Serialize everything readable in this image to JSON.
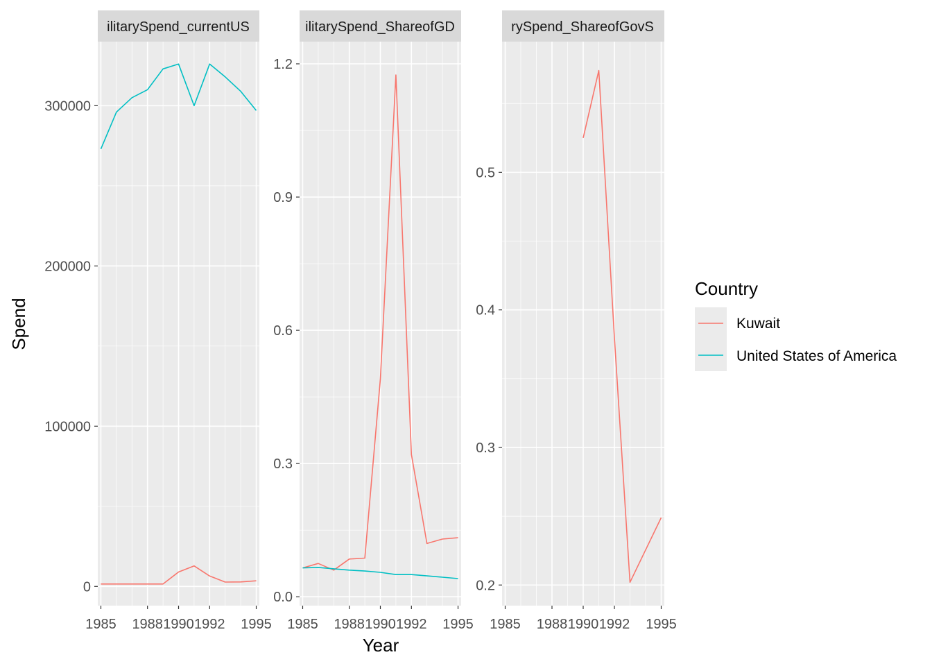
{
  "colors": {
    "Kuwait": "#F8766D",
    "United States of America": "#00BFC4",
    "panel_bg": "#EBEBEB",
    "strip_bg": "#D9D9D9",
    "grid": "#FFFFFF"
  },
  "chart_data": {
    "type": "line",
    "xlabel": "Year",
    "ylabel": "Spend",
    "legend": {
      "title": "Country",
      "position": "right",
      "entries": [
        "Kuwait",
        "United States of America"
      ]
    },
    "x_tick_labels": [
      "1985",
      "1988",
      "1990",
      "1992",
      "1995"
    ],
    "facets": [
      {
        "strip": "ilitarySpend_currentUS",
        "xlim": [
          1984.8,
          1995.2
        ],
        "ylim": [
          -12000,
          340000
        ],
        "y_ticks": [
          0,
          100000,
          200000,
          300000
        ],
        "y_tick_labels": [
          "0",
          "100000",
          "200000",
          "300000"
        ],
        "series": [
          {
            "name": "Kuwait",
            "x": [
              1985,
              1986,
              1987,
              1988,
              1989,
              1990,
              1991,
              1992,
              1993,
              1994,
              1995
            ],
            "values": [
              1500,
              1500,
              1500,
              1500,
              1500,
              9000,
              12800,
              6500,
              2700,
              2800,
              3500
            ]
          },
          {
            "name": "United States of America",
            "x": [
              1985,
              1986,
              1987,
              1988,
              1989,
              1990,
              1991,
              1992,
              1993,
              1994,
              1995
            ],
            "values": [
              273000,
              296000,
              305000,
              310000,
              323000,
              326000,
              300000,
              326000,
              318000,
              309000,
              297000
            ]
          }
        ]
      },
      {
        "strip": "ilitarySpend_ShareofGD",
        "xlim": [
          1984.8,
          1995.2
        ],
        "ylim": [
          -0.02,
          1.25
        ],
        "y_ticks": [
          0,
          0.3,
          0.6,
          0.9,
          1.2
        ],
        "y_tick_labels": [
          "0.0",
          "0.3",
          "0.6",
          "0.9",
          "1.2"
        ],
        "series": [
          {
            "name": "Kuwait",
            "x": [
              1985,
              1986,
              1987,
              1988,
              1989,
              1990,
              1991,
              1992,
              1993,
              1994,
              1995
            ],
            "values": [
              0.065,
              0.075,
              0.06,
              0.085,
              0.087,
              0.49,
              1.175,
              0.32,
              0.12,
              0.13,
              0.133
            ]
          },
          {
            "name": "United States of America",
            "x": [
              1985,
              1986,
              1987,
              1988,
              1989,
              1990,
              1991,
              1992,
              1993,
              1994,
              1995
            ],
            "values": [
              0.065,
              0.066,
              0.063,
              0.06,
              0.058,
              0.055,
              0.05,
              0.05,
              0.047,
              0.044,
              0.041
            ]
          }
        ]
      },
      {
        "strip": "rySpend_ShareofGovS",
        "xlim": [
          1984.8,
          1995.2
        ],
        "ylim": [
          0.185,
          0.595
        ],
        "y_ticks": [
          0.2,
          0.3,
          0.4,
          0.5
        ],
        "y_tick_labels": [
          "0.2",
          "0.3",
          "0.4",
          "0.5"
        ],
        "series": [
          {
            "name": "Kuwait",
            "x": [
              1990,
              1991,
              1992,
              1993,
              1995
            ],
            "values": [
              0.525,
              0.574,
              0.38,
              0.202,
              0.249
            ]
          }
        ]
      }
    ]
  }
}
